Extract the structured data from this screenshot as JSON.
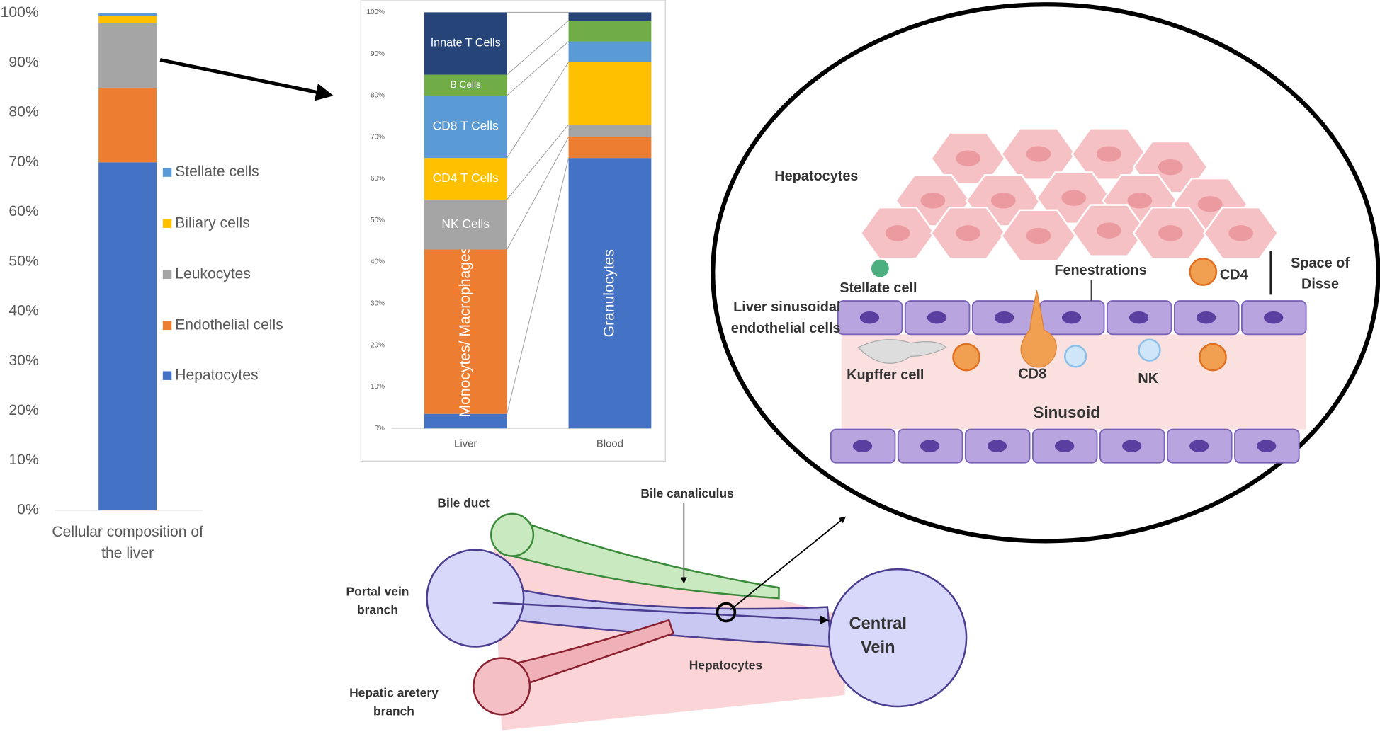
{
  "chart_data": [
    {
      "type": "stacked-bar",
      "categories": [
        "Cellular composition of the liver"
      ],
      "series": [
        {
          "name": "Hepatocytes",
          "color": "#4472c4",
          "values": [
            70
          ]
        },
        {
          "name": "Endothelial cells",
          "color": "#ed7d31",
          "values": [
            15
          ]
        },
        {
          "name": "Leukocytes",
          "color": "#a5a5a5",
          "values": [
            13
          ]
        },
        {
          "name": "Biliary cells",
          "color": "#ffc000",
          "values": [
            1.5
          ]
        },
        {
          "name": "Stellate cells",
          "color": "#5b9bd5",
          "values": [
            0.5
          ]
        }
      ],
      "ylim": [
        0,
        100
      ],
      "yticks": [
        {
          "value": 0,
          "label": "0%"
        },
        {
          "value": 10,
          "label": "10%"
        },
        {
          "value": 20,
          "label": "20%"
        },
        {
          "value": 30,
          "label": "30%"
        },
        {
          "value": 40,
          "label": "40%"
        },
        {
          "value": 50,
          "label": "50%"
        },
        {
          "value": 60,
          "label": "60%"
        },
        {
          "value": 70,
          "label": "70%"
        },
        {
          "value": 80,
          "label": "80%"
        },
        {
          "value": 90,
          "label": "90%"
        },
        {
          "value": 100,
          "label": "100%"
        }
      ],
      "legend": "right"
    },
    {
      "type": "stacked-bar",
      "categories": [
        "Liver",
        "Blood"
      ],
      "series": [
        {
          "name": "Granulocytes",
          "color": "#4472c4",
          "values": [
            3.5,
            65
          ]
        },
        {
          "name": "Monocytes/ Macrophages",
          "color": "#ed7d31",
          "values": [
            39.5,
            5
          ]
        },
        {
          "name": "NK Cells",
          "color": "#a5a5a5",
          "values": [
            12,
            3
          ]
        },
        {
          "name": "CD4 T Cells",
          "color": "#ffc000",
          "values": [
            10,
            15
          ]
        },
        {
          "name": "CD8 T Cells",
          "color": "#5b9bd5",
          "values": [
            15,
            5
          ]
        },
        {
          "name": "B Cells",
          "color": "#70ad47",
          "values": [
            5,
            5
          ]
        },
        {
          "name": "Innate T Cells",
          "color": "#264478",
          "values": [
            15,
            2
          ]
        }
      ],
      "ylim": [
        0,
        100
      ],
      "yticks": [
        {
          "value": 0,
          "label": "0%"
        },
        {
          "value": 10,
          "label": "10%"
        },
        {
          "value": 20,
          "label": "20%"
        },
        {
          "value": 30,
          "label": "30%"
        },
        {
          "value": 40,
          "label": "40%"
        },
        {
          "value": 50,
          "label": "50%"
        },
        {
          "value": 60,
          "label": "60%"
        },
        {
          "value": 70,
          "label": "70%"
        },
        {
          "value": 80,
          "label": "80%"
        },
        {
          "value": 90,
          "label": "90%"
        },
        {
          "value": 100,
          "label": "100%"
        }
      ]
    }
  ],
  "diagram": {
    "sinusoid": {
      "hepatocytes": "Hepatocytes",
      "stellate": "Stellate cell",
      "fenestrations": "Fenestrations",
      "cd4": "CD4",
      "disse": "Space of Disse",
      "lsec": "Liver sinusoidal endothelial cells",
      "kupffer": "Kupffer cell",
      "cd8": "CD8",
      "nk": "NK",
      "sinusoid": "Sinusoid"
    },
    "lobule": {
      "bile_duct": "Bile duct",
      "canaliculus": "Bile canaliculus",
      "portal": "Portal vein branch",
      "artery": "Hepatic aretery branch",
      "central": "Central Vein",
      "hepatocytes": "Hepatocytes"
    }
  }
}
